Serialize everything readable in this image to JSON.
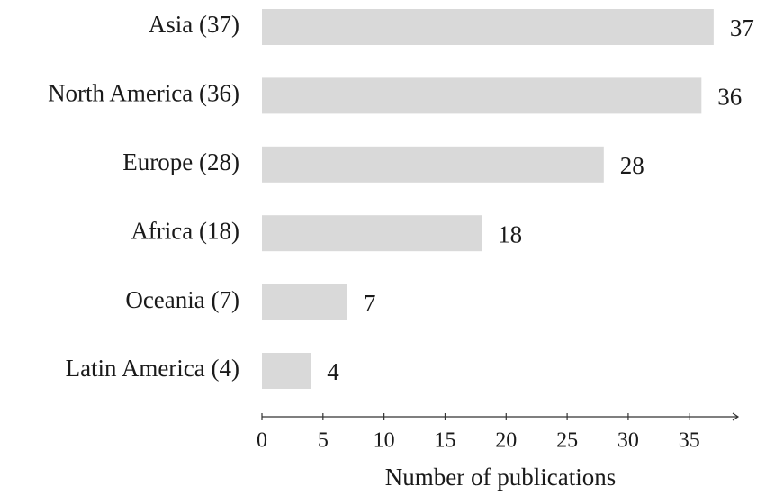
{
  "chart_data": {
    "type": "bar",
    "orientation": "horizontal",
    "categories": [
      "Asia (37)",
      "North America (36)",
      "Europe (28)",
      "Africa (18)",
      "Oceania (7)",
      "Latin America (4)"
    ],
    "values": [
      37,
      36,
      28,
      18,
      7,
      4
    ],
    "color": "#d9d9d9",
    "x_label": "Number of publications",
    "xlim": [
      0,
      39
    ],
    "xticks": [
      0,
      5,
      10,
      15,
      20,
      25,
      30,
      35
    ],
    "grid": false
  }
}
